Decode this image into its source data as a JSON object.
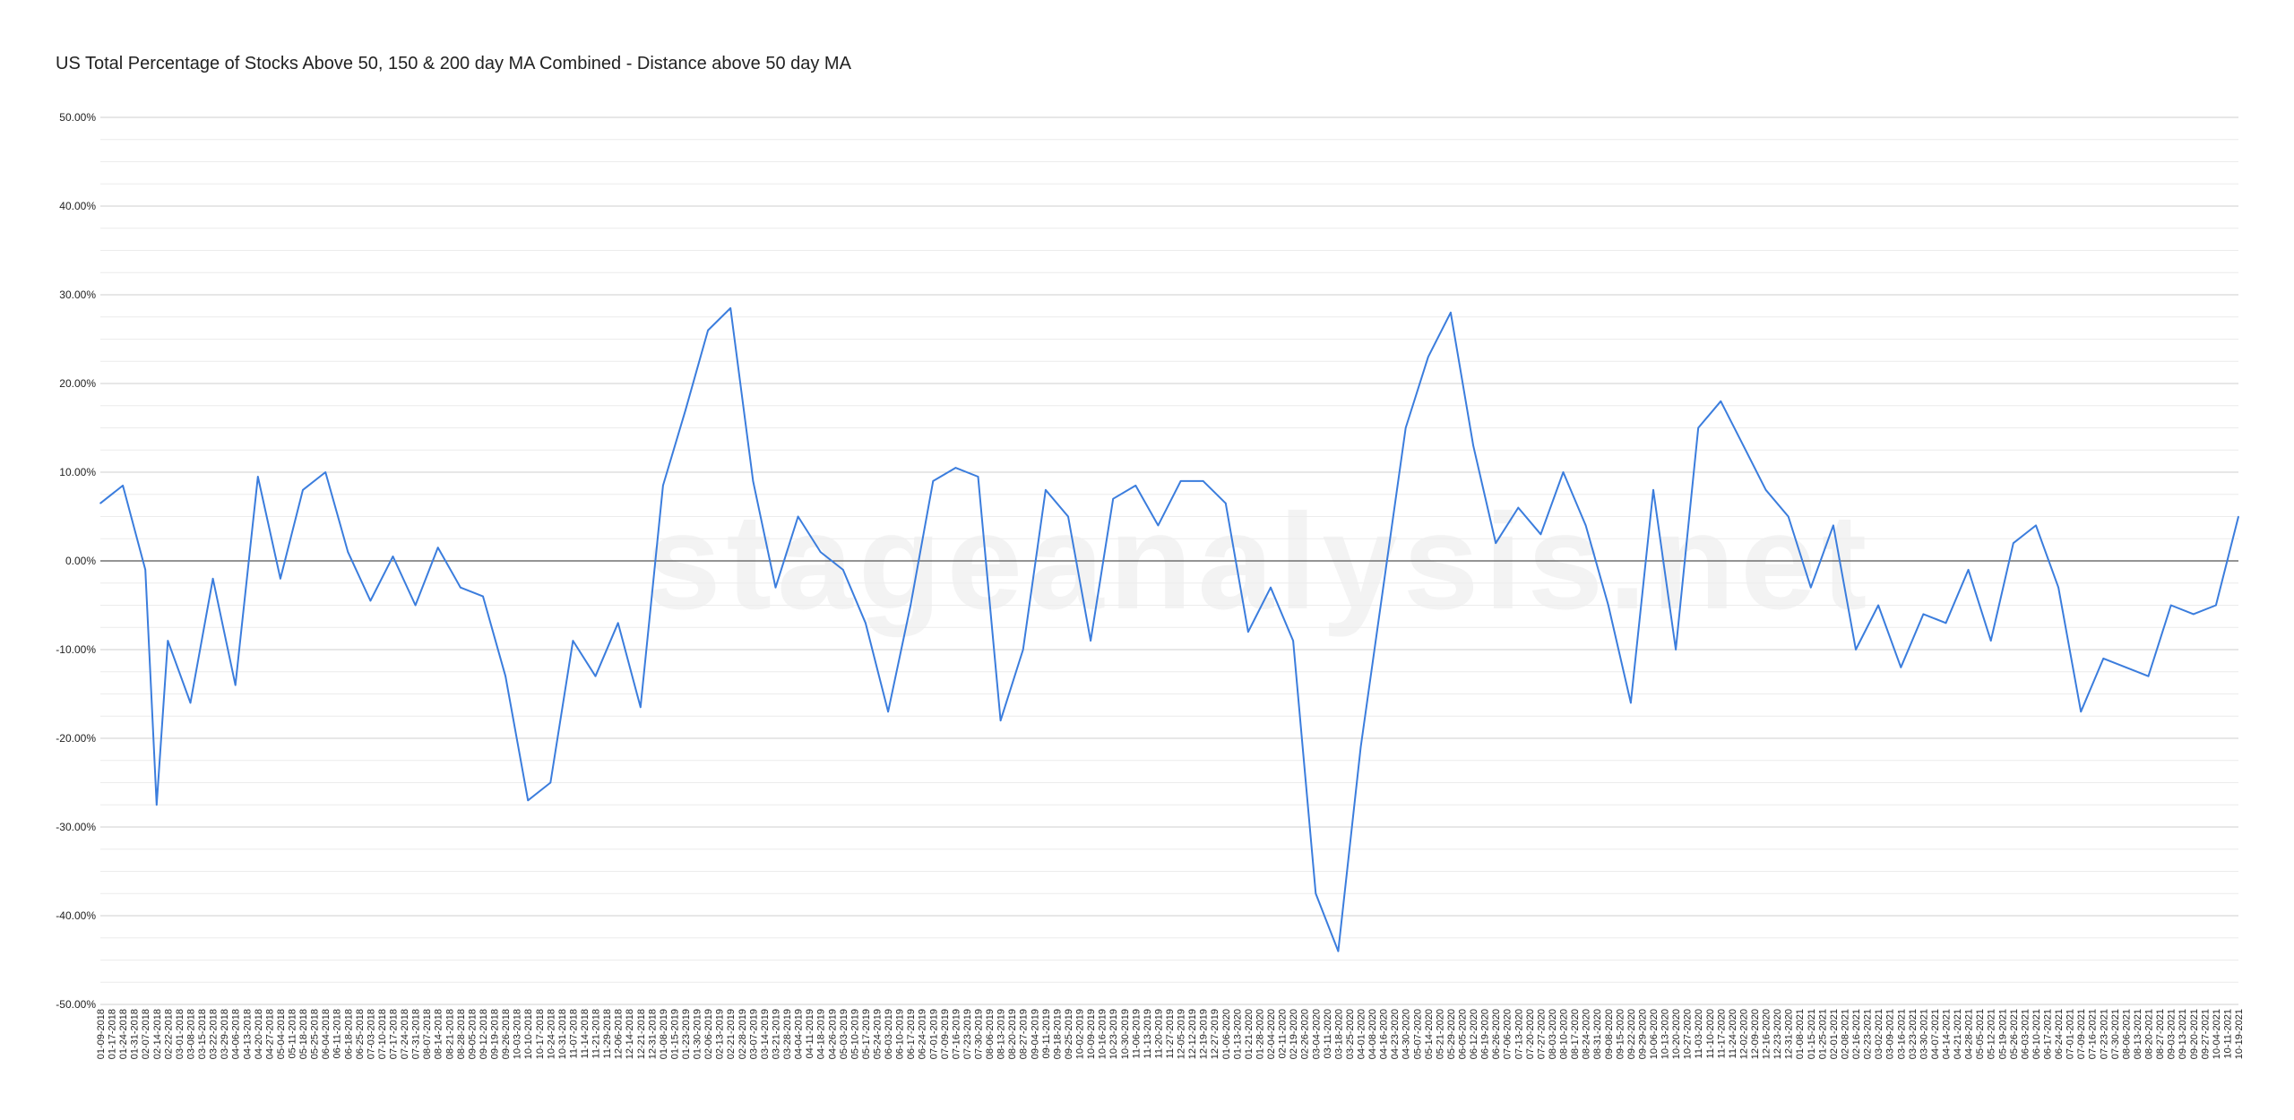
{
  "title": "US Total Percentage of Stocks Above 50, 150 & 200 day MA Combined - Distance above 50 day MA",
  "watermark": "stageanalysis.net",
  "chart_data": {
    "type": "line",
    "title": "US Total Percentage of Stocks Above 50, 150 & 200 day MA Combined - Distance above 50 day MA",
    "xlabel": "",
    "ylabel": "",
    "ylim": [
      -50,
      50
    ],
    "y_ticks": [
      "50.00%",
      "40.00%",
      "30.00%",
      "20.00%",
      "10.00%",
      "0.00%",
      "-10.00%",
      "-20.00%",
      "-30.00%",
      "-40.00%",
      "-50.00%"
    ],
    "grid": true,
    "legend": "none",
    "line_color": "#3b7ddd",
    "x_ticks": [
      "01-09-2018",
      "01-17-2018",
      "01-24-2018",
      "01-31-2018",
      "02-07-2018",
      "02-14-2018",
      "02-22-2018",
      "03-01-2018",
      "03-08-2018",
      "03-15-2018",
      "03-22-2018",
      "03-29-2018",
      "04-06-2018",
      "04-13-2018",
      "04-20-2018",
      "04-27-2018",
      "05-04-2018",
      "05-11-2018",
      "05-18-2018",
      "05-25-2018",
      "06-04-2018",
      "06-11-2018",
      "06-18-2018",
      "06-25-2018",
      "07-03-2018",
      "07-10-2018",
      "07-17-2018",
      "07-24-2018",
      "07-31-2018",
      "08-07-2018",
      "08-14-2018",
      "08-21-2018",
      "08-28-2018",
      "09-05-2018",
      "09-12-2018",
      "09-19-2018",
      "09-26-2018",
      "10-03-2018",
      "10-10-2018",
      "10-17-2018",
      "10-24-2018",
      "10-31-2018",
      "11-07-2018",
      "11-14-2018",
      "11-21-2018",
      "11-29-2018",
      "12-06-2018",
      "12-14-2018",
      "12-21-2018",
      "12-31-2018",
      "01-08-2019",
      "01-15-2019",
      "01-23-2019",
      "01-30-2019",
      "02-06-2019",
      "02-13-2019",
      "02-21-2019",
      "02-28-2019",
      "03-07-2019",
      "03-14-2019",
      "03-21-2019",
      "03-28-2019",
      "04-04-2019",
      "04-11-2019",
      "04-18-2019",
      "04-26-2019",
      "05-03-2019",
      "05-10-2019",
      "05-17-2019",
      "05-24-2019",
      "06-03-2019",
      "06-10-2019",
      "06-17-2019",
      "06-24-2019",
      "07-01-2019",
      "07-09-2019",
      "07-16-2019",
      "07-23-2019",
      "07-30-2019",
      "08-06-2019",
      "08-13-2019",
      "08-20-2019",
      "08-27-2019",
      "09-04-2019",
      "09-11-2019",
      "09-18-2019",
      "09-25-2019",
      "10-02-2019",
      "10-09-2019",
      "10-16-2019",
      "10-23-2019",
      "10-30-2019",
      "11-06-2019",
      "11-13-2019",
      "11-20-2019",
      "11-27-2019",
      "12-05-2019",
      "12-12-2019",
      "12-19-2019",
      "12-27-2019",
      "01-06-2020",
      "01-13-2020",
      "01-21-2020",
      "01-28-2020",
      "02-04-2020",
      "02-11-2020",
      "02-19-2020",
      "02-26-2020",
      "03-04-2020",
      "03-11-2020",
      "03-18-2020",
      "03-25-2020",
      "04-01-2020",
      "04-08-2020",
      "04-16-2020",
      "04-23-2020",
      "04-30-2020",
      "05-07-2020",
      "05-14-2020",
      "05-21-2020",
      "05-29-2020",
      "06-05-2020",
      "06-12-2020",
      "06-19-2020",
      "06-26-2020",
      "07-06-2020",
      "07-13-2020",
      "07-20-2020",
      "07-27-2020",
      "08-03-2020",
      "08-10-2020",
      "08-17-2020",
      "08-24-2020",
      "08-31-2020",
      "09-08-2020",
      "09-15-2020",
      "09-22-2020",
      "09-29-2020",
      "10-06-2020",
      "10-13-2020",
      "10-20-2020",
      "10-27-2020",
      "11-03-2020",
      "11-10-2020",
      "11-17-2020",
      "11-24-2020",
      "12-02-2020",
      "12-09-2020",
      "12-16-2020",
      "12-23-2020",
      "12-31-2020",
      "01-08-2021",
      "01-15-2021",
      "01-25-2021",
      "02-01-2021",
      "02-08-2021",
      "02-16-2021",
      "02-23-2021",
      "03-02-2021",
      "03-09-2021",
      "03-16-2021",
      "03-23-2021",
      "03-30-2021",
      "04-07-2021",
      "04-14-2021",
      "04-21-2021",
      "04-28-2021",
      "05-05-2021",
      "05-12-2021",
      "05-19-2021",
      "05-26-2021",
      "06-03-2021",
      "06-10-2021",
      "06-17-2021",
      "06-24-2021",
      "07-01-2021",
      "07-09-2021",
      "07-16-2021",
      "07-23-2021",
      "07-30-2021",
      "08-06-2021",
      "08-13-2021",
      "08-20-2021",
      "08-27-2021",
      "09-03-2021",
      "09-13-2021",
      "09-20-2021",
      "09-27-2021",
      "10-04-2021",
      "10-11-2021",
      "10-19-2021"
    ],
    "x": [
      "01-09-2018",
      "01-24-2018",
      "02-07-2018",
      "02-14-2018",
      "02-22-2018",
      "03-08-2018",
      "03-22-2018",
      "04-06-2018",
      "04-20-2018",
      "05-04-2018",
      "05-18-2018",
      "06-04-2018",
      "06-18-2018",
      "07-03-2018",
      "07-17-2018",
      "07-31-2018",
      "08-14-2018",
      "08-28-2018",
      "09-12-2018",
      "09-26-2018",
      "10-10-2018",
      "10-24-2018",
      "11-07-2018",
      "11-21-2018",
      "12-06-2018",
      "12-21-2018",
      "01-08-2019",
      "01-23-2019",
      "02-06-2019",
      "02-21-2019",
      "03-07-2019",
      "03-21-2019",
      "04-04-2019",
      "04-18-2019",
      "05-03-2019",
      "05-17-2019",
      "06-03-2019",
      "06-17-2019",
      "07-01-2019",
      "07-16-2019",
      "07-30-2019",
      "08-13-2019",
      "08-27-2019",
      "09-11-2019",
      "09-25-2019",
      "10-09-2019",
      "10-23-2019",
      "11-06-2019",
      "11-20-2019",
      "12-05-2019",
      "12-19-2019",
      "01-06-2020",
      "01-21-2020",
      "02-04-2020",
      "02-19-2020",
      "03-04-2020",
      "03-18-2020",
      "04-01-2020",
      "04-16-2020",
      "04-30-2020",
      "05-14-2020",
      "05-29-2020",
      "06-12-2020",
      "06-26-2020",
      "07-13-2020",
      "07-27-2020",
      "08-10-2020",
      "08-24-2020",
      "09-08-2020",
      "09-22-2020",
      "10-06-2020",
      "10-20-2020",
      "11-03-2020",
      "11-17-2020",
      "12-02-2020",
      "12-16-2020",
      "12-31-2020",
      "01-15-2021",
      "02-01-2021",
      "02-16-2021",
      "03-02-2021",
      "03-16-2021",
      "03-30-2021",
      "04-14-2021",
      "04-28-2021",
      "05-12-2021",
      "05-26-2021",
      "06-10-2021",
      "06-24-2021",
      "07-09-2021",
      "07-23-2021",
      "08-06-2021",
      "08-20-2021",
      "09-03-2021",
      "09-20-2021",
      "10-04-2021",
      "10-19-2021"
    ],
    "series": [
      {
        "values": [
          6.5,
          8.5,
          -1.0,
          -27.5,
          -9.0,
          -16.0,
          -2.0,
          -14.0,
          9.5,
          -2.0,
          8.0,
          10.0,
          1.0,
          -4.5,
          0.5,
          -5.0,
          1.5,
          -3.0,
          -4.0,
          -13.0,
          -27.0,
          -25.0,
          -9.0,
          -13.0,
          -7.0,
          -16.5,
          8.5,
          17.0,
          26.0,
          28.5,
          9.0,
          -3.0,
          5.0,
          1.0,
          -1.0,
          -7.0,
          -17.0,
          -5.0,
          9.0,
          10.5,
          9.5,
          -18.0,
          -10.0,
          8.0,
          5.0,
          -9.0,
          7.0,
          8.5,
          4.0,
          9.0,
          9.0,
          6.5,
          -8.0,
          -3.0,
          -9.0,
          -37.5,
          -44.0,
          -21.0,
          -3.0,
          15.0,
          23.0,
          28.0,
          13.0,
          2.0,
          6.0,
          3.0,
          10.0,
          4.0,
          -5.0,
          -16.0,
          8.0,
          -10.0,
          15.0,
          18.0,
          13.0,
          8.0,
          5.0,
          -3.0,
          4.0,
          -10.0,
          -5.0,
          -12.0,
          -6.0,
          -7.0,
          -1.0,
          -9.0,
          2.0,
          4.0,
          -3.0,
          -17.0,
          -11.0,
          -12.0,
          -13.0,
          -5.0,
          -6.0,
          -5.0,
          5.0
        ]
      }
    ]
  }
}
